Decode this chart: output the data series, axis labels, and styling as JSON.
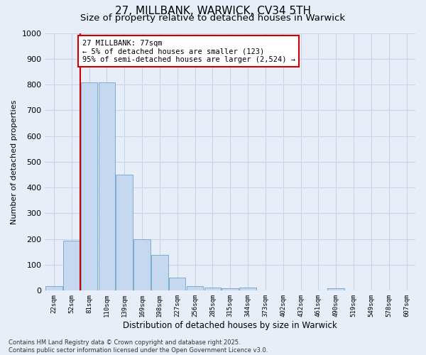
{
  "title1": "27, MILLBANK, WARWICK, CV34 5TH",
  "title2": "Size of property relative to detached houses in Warwick",
  "xlabel": "Distribution of detached houses by size in Warwick",
  "ylabel": "Number of detached properties",
  "categories": [
    "22sqm",
    "52sqm",
    "81sqm",
    "110sqm",
    "139sqm",
    "169sqm",
    "198sqm",
    "227sqm",
    "256sqm",
    "285sqm",
    "315sqm",
    "344sqm",
    "373sqm",
    "402sqm",
    "432sqm",
    "461sqm",
    "490sqm",
    "519sqm",
    "549sqm",
    "578sqm",
    "607sqm"
  ],
  "values": [
    18,
    195,
    808,
    808,
    450,
    200,
    140,
    50,
    17,
    13,
    10,
    12,
    0,
    0,
    0,
    0,
    8,
    0,
    0,
    0,
    0
  ],
  "bar_color": "#c5d8f0",
  "bar_edge_color": "#7aadd4",
  "vline_color": "#cc0000",
  "annotation_box_color": "#ffffff",
  "annotation_box_edge": "#cc0000",
  "ylim": [
    0,
    1000
  ],
  "yticks": [
    0,
    100,
    200,
    300,
    400,
    500,
    600,
    700,
    800,
    900,
    1000
  ],
  "grid_color": "#c8d4e8",
  "background_color": "#e8eef8",
  "footer1": "Contains HM Land Registry data © Crown copyright and database right 2025.",
  "footer2": "Contains public sector information licensed under the Open Government Licence v3.0.",
  "title1_fontsize": 11,
  "title2_fontsize": 9.5,
  "annotation_fontsize": 7.5,
  "ylabel_fontsize": 8,
  "xlabel_fontsize": 8.5,
  "ytick_fontsize": 8,
  "xtick_fontsize": 6.5,
  "footer_fontsize": 6,
  "vline_x_index": 2,
  "annotation_line1": "27 MILLBANK: 77sqm",
  "annotation_line2": "← 5% of detached houses are smaller (123)",
  "annotation_line3": "95% of semi-detached houses are larger (2,524) →"
}
